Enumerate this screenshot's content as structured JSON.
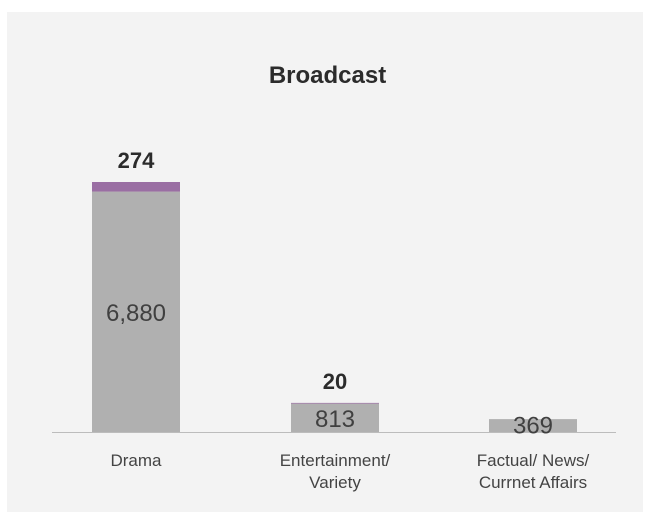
{
  "chart_data": {
    "type": "bar",
    "stacked": true,
    "title": "Broadcast",
    "categories": [
      "Drama",
      "Entertainment/\nVariety",
      "Factual/ News/\nCurrnet Affairs"
    ],
    "series": [
      {
        "values": [
          6880,
          813,
          369
        ],
        "color": "#b0b0b0",
        "labels": [
          "6,880",
          "813",
          "369"
        ]
      },
      {
        "values": [
          274,
          20,
          null
        ],
        "color": "#9a6ea3",
        "labels": [
          "274",
          "20",
          ""
        ]
      }
    ],
    "xlabel": "",
    "ylabel": "",
    "ylim": [
      0,
      7154
    ],
    "grid": false,
    "legend": "none"
  }
}
